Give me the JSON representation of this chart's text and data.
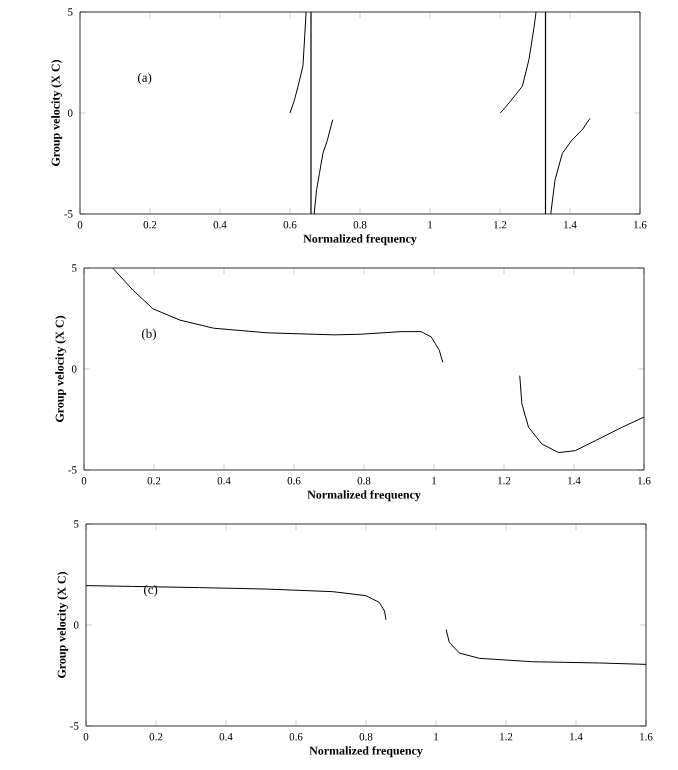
{
  "chart_data": [
    {
      "type": "line",
      "xlabel": "Normalized frequency",
      "ylabel": "Group velocity (X C)",
      "annotations": [
        "(a)"
      ],
      "xlim": [
        0,
        1.6
      ],
      "ylim": [
        -5,
        5
      ],
      "xticks": [
        0,
        0.2,
        0.4,
        0.6,
        0.8,
        1,
        1.2,
        1.4,
        1.6
      ],
      "yticks": [
        -5,
        0,
        5
      ],
      "color": "#000000",
      "ref_lines": [
        {
          "axis": "x",
          "value": 0.66
        },
        {
          "axis": "x",
          "value": 1.33
        }
      ],
      "series": [
        {
          "x": [
            0.6,
            0.612,
            0.623,
            0.637,
            0.642,
            0.646
          ],
          "values": [
            0.0,
            0.6,
            1.33,
            2.33,
            3.8,
            5.0
          ]
        },
        {
          "x": [
            0.669,
            0.676,
            0.684,
            0.694,
            0.707,
            0.722
          ],
          "values": [
            -5.0,
            -3.8,
            -3.0,
            -2.0,
            -1.33,
            -0.33
          ]
        },
        {
          "x": [
            1.201,
            1.226,
            1.264,
            1.283,
            1.298,
            1.303
          ],
          "values": [
            0.0,
            0.5,
            1.33,
            2.67,
            4.33,
            5.0
          ]
        },
        {
          "x": [
            1.345,
            1.357,
            1.378,
            1.406,
            1.435,
            1.457
          ],
          "values": [
            -5.0,
            -3.33,
            -2.0,
            -1.33,
            -0.83,
            -0.27
          ]
        }
      ]
    },
    {
      "type": "line",
      "xlabel": "Normalized frequency",
      "ylabel": "Group velocity (X C)",
      "annotations": [
        "(b)"
      ],
      "xlim": [
        0,
        1.6
      ],
      "ylim": [
        -5,
        5
      ],
      "xticks": [
        0,
        0.2,
        0.4,
        0.6,
        0.8,
        1,
        1.2,
        1.4,
        1.6
      ],
      "yticks": [
        -5,
        0,
        5
      ],
      "color": "#000000",
      "series": [
        {
          "x": [
            0.082,
            0.14,
            0.197,
            0.274,
            0.37,
            0.523,
            0.715,
            0.791,
            0.906,
            0.963,
            0.992,
            1.015,
            1.025
          ],
          "values": [
            5.0,
            3.9,
            2.98,
            2.42,
            2.02,
            1.79,
            1.69,
            1.72,
            1.85,
            1.85,
            1.59,
            0.93,
            0.33
          ]
        },
        {
          "x": [
            1.245,
            1.251,
            1.27,
            1.308,
            1.356,
            1.404,
            1.462,
            1.538,
            1.6
          ],
          "values": [
            -0.33,
            -1.72,
            -2.88,
            -3.71,
            -4.14,
            -4.04,
            -3.54,
            -2.88,
            -2.38
          ]
        }
      ]
    },
    {
      "type": "line",
      "xlabel": "Normalized frequency",
      "ylabel": "Group velocity (X C)",
      "annotations": [
        "(c)"
      ],
      "xlim": [
        0,
        1.6
      ],
      "ylim": [
        -5,
        5
      ],
      "xticks": [
        0,
        0.2,
        0.4,
        0.6,
        0.8,
        1,
        1.2,
        1.4,
        1.6
      ],
      "yticks": [
        -5,
        0,
        5
      ],
      "color": "#000000",
      "series": [
        {
          "x": [
            0,
            0.133,
            0.324,
            0.514,
            0.705,
            0.8,
            0.838,
            0.853,
            0.857
          ],
          "values": [
            1.95,
            1.91,
            1.85,
            1.78,
            1.65,
            1.45,
            1.12,
            0.69,
            0.26
          ]
        },
        {
          "x": [
            1.029,
            1.038,
            1.067,
            1.124,
            1.276,
            1.467,
            1.6
          ],
          "values": [
            -0.23,
            -0.86,
            -1.39,
            -1.65,
            -1.82,
            -1.88,
            -1.95
          ]
        }
      ]
    }
  ]
}
